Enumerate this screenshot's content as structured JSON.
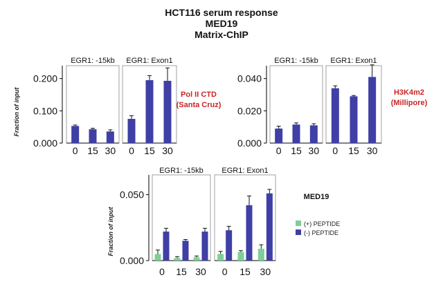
{
  "title": {
    "line1": "HCT116 serum response",
    "line2": "MED19",
    "line3": "Matrix-ChIP"
  },
  "colors": {
    "bar_blue": "#3f3fa6",
    "bar_green": "#7ecf97",
    "antibody_red": "#cc2222",
    "axis": "#000000",
    "panel_border": "#a0a0a0"
  },
  "chart_data": [
    {
      "type": "bar",
      "ylabel": "Fraction of input",
      "ylim": [
        0,
        0.24
      ],
      "yticks": [
        0,
        0.1,
        0.2
      ],
      "ytick_labels": [
        "0.000",
        "0.100",
        "0.200"
      ],
      "annotation": {
        "line1": "Pol II CTD",
        "line2": "(Santa Cruz)"
      },
      "panels": [
        {
          "label": "EGR1: -15kb",
          "categories": [
            "0",
            "15",
            "30"
          ],
          "series": [
            {
              "values": [
                0.053,
                0.043,
                0.036
              ],
              "errors": [
                0.003,
                0.003,
                0.005
              ],
              "color": "#3f3fa6"
            }
          ]
        },
        {
          "label": "EGR1: Exon1",
          "categories": [
            "0",
            "15",
            "30"
          ],
          "series": [
            {
              "values": [
                0.075,
                0.195,
                0.193
              ],
              "errors": [
                0.01,
                0.014,
                0.04
              ],
              "color": "#3f3fa6"
            }
          ]
        }
      ]
    },
    {
      "type": "bar",
      "ylabel": "",
      "ylim": [
        0,
        0.048
      ],
      "yticks": [
        0,
        0.02,
        0.04
      ],
      "ytick_labels": [
        "0.000",
        "0.020",
        "0.040"
      ],
      "annotation": {
        "line1": "H3K4m2",
        "line2": "(Millipore)"
      },
      "panels": [
        {
          "label": "EGR1: -15kb",
          "categories": [
            "0",
            "15",
            "30"
          ],
          "series": [
            {
              "values": [
                0.009,
                0.0115,
                0.011
              ],
              "errors": [
                0.0015,
                0.001,
                0.001
              ],
              "color": "#3f3fa6"
            }
          ]
        },
        {
          "label": "EGR1: Exon1",
          "categories": [
            "0",
            "15",
            "30"
          ],
          "series": [
            {
              "values": [
                0.034,
                0.029,
                0.041
              ],
              "errors": [
                0.0015,
                0.0005,
                0.0075
              ],
              "color": "#3f3fa6"
            }
          ]
        }
      ]
    },
    {
      "type": "bar",
      "ylabel": "Fraction of input",
      "ylim": [
        0,
        0.065
      ],
      "yticks": [
        0,
        0.05
      ],
      "ytick_labels": [
        "0.000",
        "0.050"
      ],
      "annotation": {
        "line1": "MED19",
        "line2": ""
      },
      "legend": [
        {
          "name": "(+) PEPTIDE",
          "color": "#7ecf97"
        },
        {
          "name": "(-) PEPTIDE",
          "color": "#3f3fa6"
        }
      ],
      "panels": [
        {
          "label": "EGR1: -15kb",
          "categories": [
            "0",
            "15",
            "30"
          ],
          "series": [
            {
              "name": "(+) PEPTIDE",
              "values": [
                0.005,
                0.002,
                0.0025
              ],
              "errors": [
                0.003,
                0.001,
                0.001
              ],
              "color": "#7ecf97"
            },
            {
              "name": "(-) PEPTIDE",
              "values": [
                0.022,
                0.015,
                0.022
              ],
              "errors": [
                0.0025,
                0.001,
                0.0025
              ],
              "color": "#3f3fa6"
            }
          ]
        },
        {
          "label": "EGR1: Exon1",
          "categories": [
            "0",
            "15",
            "30"
          ],
          "series": [
            {
              "name": "(+) PEPTIDE",
              "values": [
                0.005,
                0.0065,
                0.009
              ],
              "errors": [
                0.002,
                0.001,
                0.003
              ],
              "color": "#7ecf97"
            },
            {
              "name": "(-) PEPTIDE",
              "values": [
                0.023,
                0.042,
                0.051
              ],
              "errors": [
                0.003,
                0.007,
                0.003
              ],
              "color": "#3f3fa6"
            }
          ]
        }
      ]
    }
  ]
}
